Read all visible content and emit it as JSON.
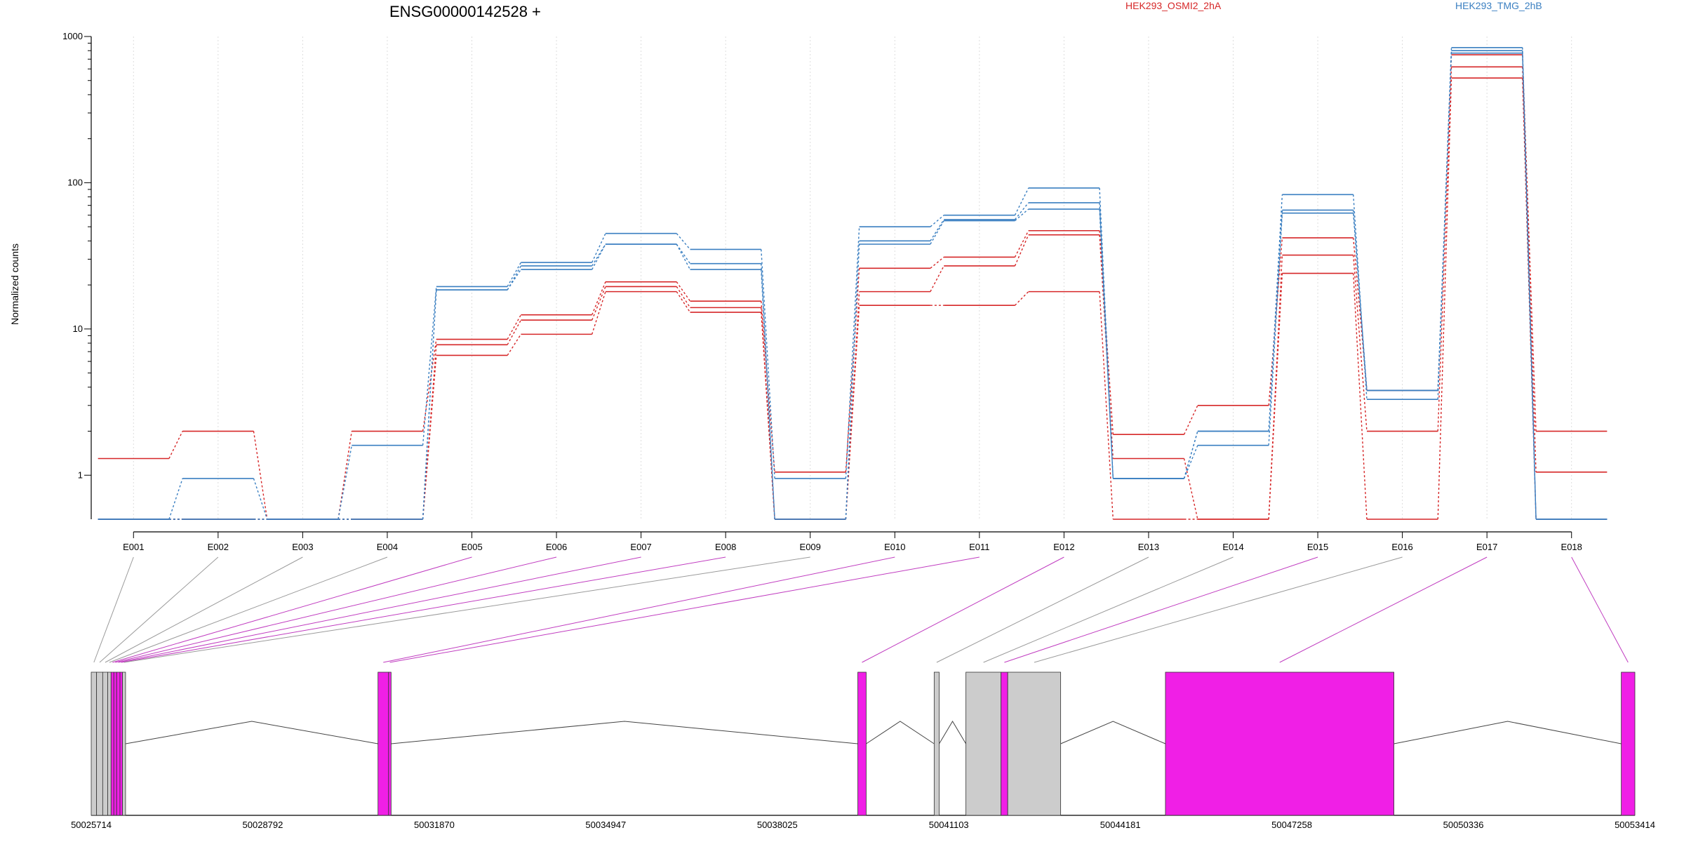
{
  "chart_data": {
    "type": "line",
    "title": "ENSG00000142528 +",
    "ylabel": "Normalized counts",
    "xlabel": "",
    "yscale": "log",
    "ylim": [
      0.5,
      1000
    ],
    "yticks": [
      1,
      10,
      100,
      1000
    ],
    "ytick_labels": [
      "1",
      "10",
      "100",
      "1000"
    ],
    "grid": "vertical dotted lines at each exon bin",
    "legend": [
      {
        "name": "HEK293_OSMI2_2hA",
        "color": "#d62728"
      },
      {
        "name": "HEK293_TMG_2hB",
        "color": "#3a7fc1"
      }
    ],
    "categories": [
      "E001",
      "E002",
      "E003",
      "E004",
      "E005",
      "E006",
      "E007",
      "E008",
      "E009",
      "E010",
      "E011",
      "E012",
      "E013",
      "E014",
      "E015",
      "E016",
      "E017",
      "E018"
    ],
    "series": [
      {
        "group": "HEK293_OSMI2_2hA",
        "color": "#d62728",
        "values": [
          1.3,
          2.0,
          0.5,
          2.0,
          8.5,
          12.5,
          21.0,
          15.5,
          1.05,
          26.0,
          31.0,
          47.0,
          1.9,
          3.0,
          42.0,
          3.8,
          750,
          2.0
        ]
      },
      {
        "group": "HEK293_OSMI2_2hA",
        "color": "#d62728",
        "values": [
          0.5,
          0.5,
          0.5,
          0.5,
          7.8,
          11.5,
          19.5,
          14.0,
          0.5,
          18.0,
          27.0,
          44.0,
          1.3,
          0.5,
          32.0,
          2.0,
          620,
          1.05
        ]
      },
      {
        "group": "HEK293_OSMI2_2hA",
        "color": "#d62728",
        "values": [
          0.5,
          0.5,
          0.5,
          0.5,
          6.6,
          9.2,
          18.0,
          13.0,
          0.5,
          14.5,
          14.5,
          18.0,
          0.5,
          0.5,
          24.0,
          0.5,
          520,
          0.5
        ]
      },
      {
        "group": "HEK293_TMG_2hB",
        "color": "#3a7fc1",
        "values": [
          0.5,
          0.95,
          0.5,
          1.6,
          19.5,
          28.5,
          45.0,
          35.0,
          0.95,
          50.0,
          60.0,
          92.0,
          0.95,
          2.0,
          83.0,
          3.3,
          840,
          0.5
        ]
      },
      {
        "group": "HEK293_TMG_2hB",
        "color": "#3a7fc1",
        "values": [
          0.5,
          0.5,
          0.5,
          0.5,
          18.5,
          27.0,
          38.0,
          28.0,
          0.5,
          40.0,
          56.0,
          73.0,
          0.95,
          2.0,
          65.0,
          3.8,
          800,
          0.5
        ]
      },
      {
        "group": "HEK293_TMG_2hB",
        "color": "#3a7fc1",
        "values": [
          0.5,
          0.5,
          0.5,
          0.5,
          18.5,
          25.5,
          38.0,
          25.5,
          0.5,
          38.0,
          55.0,
          66.0,
          0.95,
          1.6,
          62.0,
          3.8,
          770,
          0.5
        ]
      }
    ],
    "gene_model": {
      "coordinate_range": [
        50025714,
        50053414
      ],
      "coordinate_ticks": [
        50025714,
        50028792,
        50031870,
        50034947,
        50038025,
        50041103,
        50044181,
        50047258,
        50050336,
        50053414
      ],
      "colors": {
        "significant": "#f01fe6",
        "other": "#cccccc"
      },
      "exon_bins": [
        {
          "id": "E001",
          "start": 50025714,
          "end": 50025810,
          "significant": false
        },
        {
          "id": "E002",
          "start": 50025810,
          "end": 50025920,
          "significant": false
        },
        {
          "id": "E003",
          "start": 50025920,
          "end": 50026010,
          "significant": false
        },
        {
          "id": "E004",
          "start": 50026010,
          "end": 50026070,
          "significant": false
        },
        {
          "id": "E005",
          "start": 50026070,
          "end": 50026120,
          "significant": true
        },
        {
          "id": "E006",
          "start": 50026120,
          "end": 50026170,
          "significant": true
        },
        {
          "id": "E007",
          "start": 50026170,
          "end": 50026230,
          "significant": true
        },
        {
          "id": "E008",
          "start": 50026230,
          "end": 50026275,
          "significant": true
        },
        {
          "id": "E009",
          "start": 50026275,
          "end": 50026330,
          "significant": false
        },
        {
          "id": "E010",
          "start": 50030860,
          "end": 50031050,
          "significant": true
        },
        {
          "id": "E011",
          "start": 50031050,
          "end": 50031095,
          "significant": true
        },
        {
          "id": "E012",
          "start": 50039470,
          "end": 50039620,
          "significant": true
        },
        {
          "id": "E013",
          "start": 50040840,
          "end": 50040930,
          "significant": false
        },
        {
          "id": "E014",
          "start": 50041410,
          "end": 50042040,
          "significant": false
        },
        {
          "id": "E015",
          "start": 50042040,
          "end": 50042160,
          "significant": true
        },
        {
          "id": "E016",
          "start": 50042160,
          "end": 50043110,
          "significant": false
        },
        {
          "id": "E017",
          "start": 50044990,
          "end": 50049090,
          "significant": true
        },
        {
          "id": "E018",
          "start": 50053170,
          "end": 50053414,
          "significant": true
        }
      ]
    }
  }
}
